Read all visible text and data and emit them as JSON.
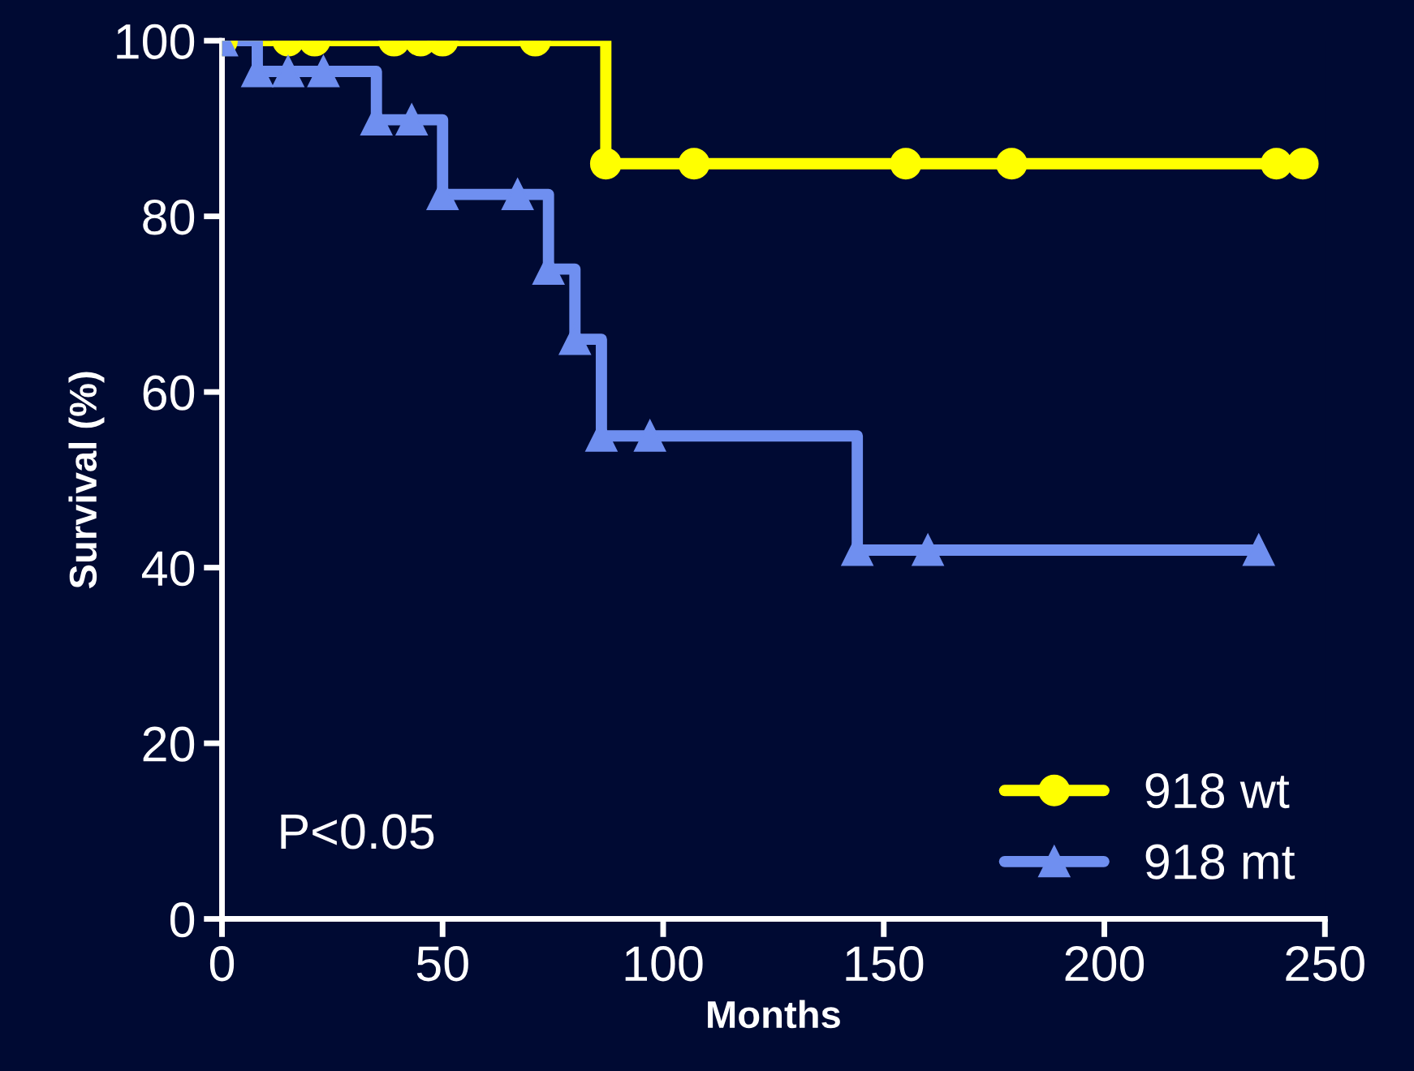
{
  "chart_data": {
    "type": "step",
    "xlabel": "Months",
    "ylabel": "Survival (%)",
    "xlim": [
      0,
      250
    ],
    "ylim": [
      0,
      100
    ],
    "xticks": [
      0,
      50,
      100,
      150,
      200,
      250
    ],
    "yticks": [
      0,
      20,
      40,
      60,
      80,
      100
    ],
    "grid": false,
    "legend": "bottom right",
    "annotations": [
      "P<0.05"
    ],
    "series": [
      {
        "name": "918 wt",
        "color": "#ffff00",
        "marker": "circle",
        "x": [
          0,
          15,
          21,
          39,
          45,
          50,
          71,
          87,
          107,
          155,
          179,
          239,
          245
        ],
        "values": [
          100,
          100,
          100,
          100,
          100,
          100,
          100,
          86,
          86,
          86,
          86,
          86,
          86
        ]
      },
      {
        "name": "918 mt",
        "color": "#6f8ff0",
        "marker": "triangle",
        "x": [
          0,
          8,
          15,
          23,
          35,
          43,
          50,
          67,
          74,
          80,
          86,
          97,
          144,
          160,
          235
        ],
        "values": [
          100,
          96.5,
          96.5,
          96.5,
          91,
          91,
          82.5,
          82.5,
          74,
          66,
          55,
          55,
          42,
          42,
          42
        ]
      }
    ]
  }
}
